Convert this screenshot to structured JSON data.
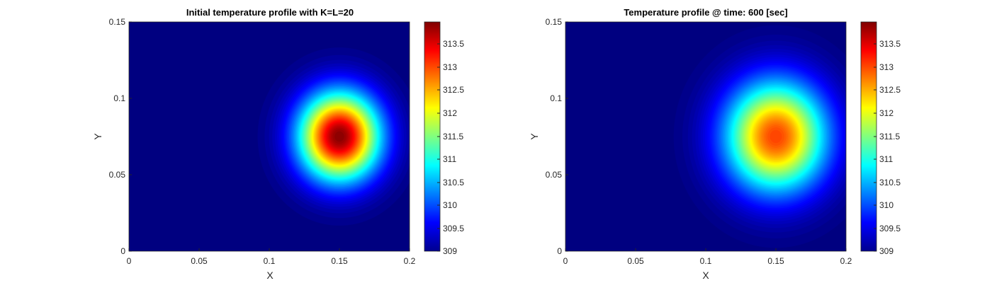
{
  "chart_data": [
    {
      "type": "heatmap",
      "title": "Initial temperature profile with K=L=20",
      "xlabel": "X",
      "ylabel": "Y",
      "xlim": [
        0,
        0.2
      ],
      "ylim": [
        0,
        0.15
      ],
      "x_ticks": [
        "0",
        "0.05",
        "0.1",
        "0.15",
        "0.2"
      ],
      "y_ticks": [
        "0",
        "0.05",
        "0.1",
        "0.15"
      ],
      "colormap": "jet",
      "clim": [
        309,
        313.95
      ],
      "colorbar_ticks": [
        "309",
        "309.5",
        "310",
        "310.5",
        "311",
        "311.5",
        "312",
        "312.5",
        "313",
        "313.5"
      ],
      "colorbar_tick_values": [
        309,
        309.5,
        310,
        310.5,
        311,
        311.5,
        312,
        312.5,
        313,
        313.5
      ],
      "field": {
        "background": 309,
        "peak": 313.95,
        "center_x": 0.15,
        "center_y": 0.075,
        "spread": 0.02
      }
    },
    {
      "type": "heatmap",
      "title": "Temperature profile @ time: 600 [sec]",
      "xlabel": "X",
      "ylabel": "Y",
      "xlim": [
        0,
        0.2
      ],
      "ylim": [
        0,
        0.15
      ],
      "x_ticks": [
        "0",
        "0.05",
        "0.1",
        "0.15",
        "0.2"
      ],
      "y_ticks": [
        "0",
        "0.05",
        "0.1",
        "0.15"
      ],
      "colormap": "jet",
      "clim": [
        309,
        313.95
      ],
      "colorbar_ticks": [
        "309",
        "309.5",
        "310",
        "310.5",
        "311",
        "311.5",
        "312",
        "312.5",
        "313",
        "313.5"
      ],
      "colorbar_tick_values": [
        309,
        309.5,
        310,
        310.5,
        311,
        311.5,
        312,
        312.5,
        313,
        313.5
      ],
      "field": {
        "background": 309,
        "peak": 313.05,
        "center_x": 0.15,
        "center_y": 0.075,
        "spread": 0.025
      }
    }
  ]
}
